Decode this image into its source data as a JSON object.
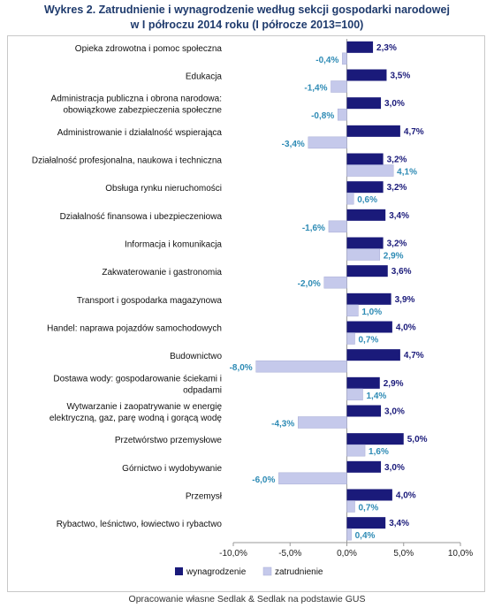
{
  "title_line1": "Wykres 2. Zatrudnienie i wynagrodzenie według sekcji gospodarki narodowej",
  "title_line2": "w I półroczu 2014 roku (I półrocze 2013=100)",
  "footer": "Opracowanie własne Sedlak & Sedlak na podstawie GUS",
  "colors": {
    "wynagrodzenie": "#1a1a7a",
    "zatrudnienie": "#c5c9eb",
    "label_w": "#1a1a7a",
    "label_z": "#2e8bb5"
  },
  "chart_data": {
    "type": "bar",
    "orientation": "horizontal",
    "categories": [
      [
        "Opieka zdrowotna i pomoc społeczna"
      ],
      [
        "Edukacja"
      ],
      [
        "Administracja publiczna i obrona narodowa:",
        "obowiązkowe zabezpieczenia społeczne"
      ],
      [
        "Administrowanie i działalność wspierająca"
      ],
      [
        "Działalność profesjonalna, naukowa i techniczna"
      ],
      [
        "Obsługa rynku nieruchomości"
      ],
      [
        "Działalność finansowa i ubezpieczeniowa"
      ],
      [
        "Informacja i komunikacja"
      ],
      [
        "Zakwaterowanie i gastronomia"
      ],
      [
        "Transport i gospodarka magazynowa"
      ],
      [
        "Handel: naprawa pojazdów samochodowych"
      ],
      [
        "Budownictwo"
      ],
      [
        "Dostawa wody: gospodarowanie ściekami i",
        "odpadami"
      ],
      [
        "Wytwarzanie i zaopatrywanie w energię",
        "elektryczną, gaz, parę wodną i gorącą wodę"
      ],
      [
        "Przetwórstwo przemysłowe"
      ],
      [
        "Górnictwo i wydobywanie"
      ],
      [
        "Przemysł"
      ],
      [
        "Rybactwo, leśnictwo, łowiectwo i rybactwo"
      ]
    ],
    "series": [
      {
        "name": "wynagrodzenie",
        "values": [
          2.3,
          3.5,
          3.0,
          4.7,
          3.2,
          3.2,
          3.4,
          3.2,
          3.6,
          3.9,
          4.0,
          4.7,
          2.9,
          3.0,
          5.0,
          3.0,
          4.0,
          3.4
        ],
        "labels": [
          "2,3%",
          "3,5%",
          "3,0%",
          "4,7%",
          "3,2%",
          "3,2%",
          "3,4%",
          "3,2%",
          "3,6%",
          "3,9%",
          "4,0%",
          "4,7%",
          "2,9%",
          "3,0%",
          "5,0%",
          "3,0%",
          "4,0%",
          "3,4%"
        ]
      },
      {
        "name": "zatrudnienie",
        "values": [
          -0.4,
          -1.4,
          -0.8,
          -3.4,
          4.1,
          0.6,
          -1.6,
          2.9,
          -2.0,
          1.0,
          0.7,
          -8.0,
          1.4,
          -4.3,
          1.6,
          -6.0,
          0.7,
          0.4
        ],
        "labels": [
          "-0,4%",
          "-1,4%",
          "-0,8%",
          "-3,4%",
          "4,1%",
          "0,6%",
          "-1,6%",
          "2,9%",
          "-2,0%",
          "1,0%",
          "0,7%",
          "-8,0%",
          "1,4%",
          "-4,3%",
          "1,6%",
          "-6,0%",
          "0,7%",
          "0,4%"
        ]
      }
    ],
    "xlim": [
      -10,
      10
    ],
    "xticks": [
      "-10,0%",
      "-5,0%",
      "0,0%",
      "5,0%",
      "10,0%"
    ],
    "xtick_values": [
      -10,
      -5,
      0,
      5,
      10
    ],
    "grid": false,
    "legend": "bottom"
  }
}
